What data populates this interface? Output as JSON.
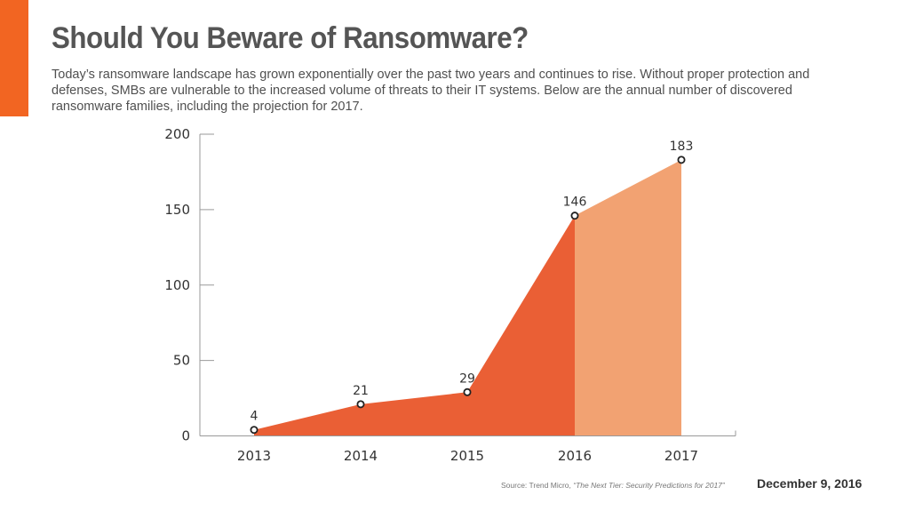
{
  "header": {
    "title": "Should You Beware of Ransomware?",
    "intro": "Today’s ransomware landscape has grown exponentially over the past two years and continues to rise. Without proper protection and defenses, SMBs are vulnerable to the increased volume of threats to their IT systems. Below are the annual number of discovered ransomware families, including the projection for 2017."
  },
  "colors": {
    "accent": "#f26522",
    "actual_fill": "#ea5f35",
    "projection_fill": "#f2a272",
    "axis": "#999999"
  },
  "chart_data": {
    "type": "area",
    "categories": [
      "2013",
      "2014",
      "2015",
      "2016",
      "2017"
    ],
    "values": [
      4,
      21,
      29,
      146,
      183
    ],
    "data_labels": [
      "4",
      "21",
      "29",
      "146",
      "183"
    ],
    "projected_from": "2016",
    "yticks": [
      "0",
      "50",
      "100",
      "150",
      "200"
    ],
    "ylim": [
      0,
      200
    ],
    "title": "",
    "xlabel": "",
    "ylabel": "",
    "grid": false
  },
  "footer": {
    "source_prefix": "Source: Trend Micro, ",
    "source_title": "“The Next Tier: Security Predictions for 2017”",
    "date": "December 9, 2016"
  }
}
